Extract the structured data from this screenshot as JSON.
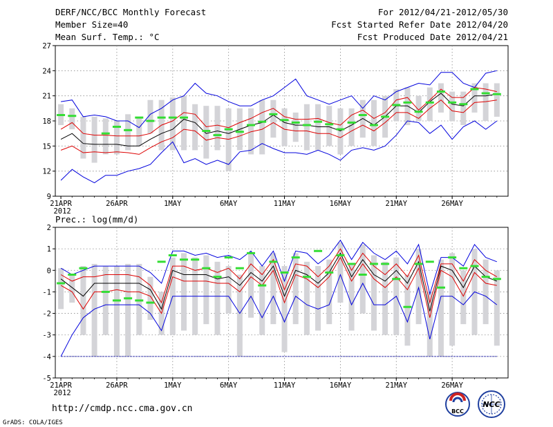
{
  "header": {
    "title": "DERF/NCC/BCC Monthly Forecast",
    "member_size": "Member Size=40",
    "variable_top": "Mean Surf. Temp.: °C",
    "period": "For 2012/04/21-2012/05/30",
    "started_refer": "Fcst Started Refer Date 2012/04/20",
    "produced": "Fcst Produced Date 2012/04/21"
  },
  "footer": {
    "url": "http://cmdp.ncc.cma.gov.cn",
    "credit": "GrADS: COLA/IGES",
    "logo_left": "BCC",
    "logo_right": "NCC"
  },
  "colors": {
    "mean": "#000000",
    "envelope": "#0000dd",
    "spread": "#dd0000",
    "box": "#d4d4d8",
    "obs": "#33dd33",
    "grid": "#888888",
    "baseline": "#3333aa"
  },
  "x_axis": {
    "labels": [
      "21APR",
      "26APR",
      "1MAY",
      "6MAY",
      "11MAY",
      "16MAY",
      "21MAY",
      "26MAY"
    ],
    "label_days": [
      1,
      6,
      11,
      16,
      21,
      26,
      31,
      36
    ],
    "year_label": "2012",
    "ndays": 40
  },
  "chart_data": [
    {
      "type": "line",
      "title": "Mean Surf. Temp.: °C",
      "ylim": [
        9,
        27
      ],
      "yticks": [
        9,
        12,
        15,
        18,
        21,
        24,
        27
      ],
      "x": [
        1,
        2,
        3,
        4,
        5,
        6,
        7,
        8,
        9,
        10,
        11,
        12,
        13,
        14,
        15,
        16,
        17,
        18,
        19,
        20,
        21,
        22,
        23,
        24,
        25,
        26,
        27,
        28,
        29,
        30,
        31,
        32,
        33,
        34,
        35,
        36,
        37,
        38,
        39,
        40
      ],
      "series": [
        {
          "name": "max",
          "values": [
            20.3,
            20.5,
            18.5,
            18.7,
            18.5,
            18.0,
            18.0,
            17.2,
            18.8,
            19.5,
            20.5,
            21.0,
            22.5,
            21.3,
            21.0,
            20.3,
            19.8,
            19.8,
            20.5,
            21.0,
            22.0,
            23.0,
            21.0,
            20.5,
            20.0,
            20.5,
            21.0,
            19.5,
            21.0,
            20.5,
            21.5,
            22.0,
            22.5,
            22.3,
            23.8,
            23.8,
            22.5,
            22.0,
            23.7,
            24.0
          ]
        },
        {
          "name": "upper",
          "values": [
            17.0,
            17.8,
            16.5,
            16.3,
            16.3,
            16.2,
            16.2,
            16.2,
            16.5,
            17.5,
            18.0,
            19.0,
            18.8,
            17.3,
            17.5,
            17.2,
            17.8,
            18.3,
            19.0,
            19.5,
            18.5,
            18.2,
            18.2,
            18.3,
            17.8,
            17.5,
            18.7,
            19.3,
            18.3,
            19.0,
            20.5,
            20.8,
            19.3,
            20.5,
            21.8,
            20.8,
            20.8,
            22.0,
            21.8,
            21.5
          ]
        },
        {
          "name": "mean",
          "values": [
            15.8,
            16.5,
            15.3,
            15.2,
            15.2,
            15.2,
            15.0,
            15.0,
            15.8,
            16.5,
            17.0,
            18.2,
            17.8,
            16.5,
            16.8,
            16.5,
            17.0,
            17.5,
            17.8,
            18.7,
            17.8,
            17.5,
            17.5,
            17.3,
            17.3,
            16.8,
            17.5,
            18.3,
            17.5,
            18.5,
            19.8,
            19.8,
            19.0,
            20.3,
            21.3,
            20.0,
            19.8,
            21.0,
            21.0,
            21.2
          ]
        },
        {
          "name": "lower",
          "values": [
            14.5,
            15.0,
            14.2,
            14.3,
            14.2,
            14.3,
            14.2,
            14.0,
            14.8,
            15.5,
            16.0,
            17.0,
            16.8,
            15.7,
            16.0,
            15.8,
            16.2,
            16.7,
            17.0,
            17.8,
            17.0,
            16.8,
            16.8,
            16.5,
            16.5,
            16.0,
            16.8,
            17.5,
            16.8,
            17.8,
            19.0,
            19.0,
            18.3,
            19.5,
            20.5,
            19.2,
            19.0,
            20.2,
            20.3,
            20.5
          ]
        },
        {
          "name": "min",
          "values": [
            10.9,
            12.2,
            11.3,
            10.6,
            11.5,
            11.5,
            12.0,
            12.3,
            12.8,
            14.2,
            15.5,
            13.0,
            13.5,
            12.8,
            13.3,
            12.8,
            14.3,
            14.5,
            15.3,
            14.7,
            14.2,
            14.2,
            14.0,
            14.5,
            14.0,
            13.3,
            14.5,
            14.8,
            14.5,
            15.0,
            16.3,
            18.0,
            17.8,
            16.5,
            17.5,
            15.8,
            17.3,
            18.0,
            17.0,
            18.0
          ]
        }
      ],
      "boxes": [
        [
          17.5,
          20.0
        ],
        [
          17.0,
          19.5
        ],
        [
          13.5,
          18.5
        ],
        [
          13.0,
          18.5
        ],
        [
          14.0,
          18.3
        ],
        [
          14.0,
          18.0
        ],
        [
          14.5,
          18.8
        ],
        [
          15.0,
          18.5
        ],
        [
          16.5,
          20.5
        ],
        [
          14.5,
          20.5
        ],
        [
          14.5,
          20.8
        ],
        [
          14.5,
          21.0
        ],
        [
          14.5,
          20.0
        ],
        [
          13.5,
          19.8
        ],
        [
          14.5,
          19.8
        ],
        [
          12.0,
          19.5
        ],
        [
          14.5,
          19.5
        ],
        [
          14.0,
          19.5
        ],
        [
          14.0,
          20.5
        ],
        [
          16.0,
          20.5
        ],
        [
          15.0,
          19.5
        ],
        [
          15.5,
          19.0
        ],
        [
          14.5,
          20.0
        ],
        [
          14.5,
          20.0
        ],
        [
          15.0,
          19.8
        ],
        [
          14.0,
          19.5
        ],
        [
          15.0,
          19.5
        ],
        [
          16.0,
          20.5
        ],
        [
          15.0,
          20.5
        ],
        [
          16.0,
          21.0
        ],
        [
          18.0,
          21.8
        ],
        [
          17.5,
          22.0
        ],
        [
          18.0,
          21.0
        ],
        [
          18.0,
          22.0
        ],
        [
          19.0,
          22.5
        ],
        [
          18.0,
          21.5
        ],
        [
          17.5,
          21.5
        ],
        [
          19.0,
          22.5
        ],
        [
          18.0,
          22.5
        ],
        [
          18.5,
          22.5
        ]
      ],
      "observed": [
        18.7,
        18.6,
        null,
        null,
        16.5,
        17.3,
        16.9,
        18.4,
        18.0,
        18.4,
        18.4,
        18.4,
        null,
        16.8,
        16.3,
        17.0,
        16.7,
        17.5,
        17.9,
        18.8,
        18.1,
        17.8,
        17.5,
        17.9,
        17.6,
        17.0,
        17.8,
        18.7,
        17.5,
        18.5,
        19.9,
        20.2,
        19.1,
        20.2,
        21.5,
        20.2,
        20.0,
        21.8,
        21.3,
        21.2
      ]
    },
    {
      "type": "line",
      "title": "Prec.: log(mm/d)",
      "ylim": [
        -5,
        2
      ],
      "yticks": [
        -5,
        -4,
        -3,
        -2,
        -1,
        0,
        1,
        2
      ],
      "x": [
        1,
        2,
        3,
        4,
        5,
        6,
        7,
        8,
        9,
        10,
        11,
        12,
        13,
        14,
        15,
        16,
        17,
        18,
        19,
        20,
        21,
        22,
        23,
        24,
        25,
        26,
        27,
        28,
        29,
        30,
        31,
        32,
        33,
        34,
        35,
        36,
        37,
        38,
        39,
        40
      ],
      "baseline": -4,
      "series": [
        {
          "name": "max",
          "values": [
            0.1,
            -0.2,
            0.0,
            0.2,
            0.2,
            0.2,
            0.2,
            0.2,
            -0.1,
            -0.6,
            0.9,
            0.9,
            0.7,
            0.8,
            0.6,
            0.7,
            0.5,
            0.9,
            0.2,
            0.9,
            -0.5,
            0.9,
            0.8,
            0.3,
            0.7,
            1.4,
            0.5,
            1.3,
            0.8,
            0.5,
            0.9,
            0.3,
            1.2,
            -1.1,
            0.6,
            0.6,
            0.2,
            1.2,
            0.6,
            0.4
          ]
        },
        {
          "name": "upper",
          "values": [
            -0.2,
            -0.5,
            -0.3,
            -0.3,
            -0.2,
            -0.2,
            -0.2,
            -0.3,
            -0.7,
            -1.5,
            0.2,
            0.2,
            0.0,
            0.1,
            -0.1,
            0.1,
            -0.4,
            0.3,
            -0.2,
            0.5,
            -0.9,
            0.3,
            0.2,
            -0.3,
            0.2,
            1.0,
            0.0,
            0.8,
            0.2,
            -0.2,
            0.3,
            -0.3,
            0.7,
            -1.5,
            0.3,
            0.3,
            -0.5,
            0.5,
            0.0,
            -0.3
          ]
        },
        {
          "name": "mean",
          "values": [
            -0.4,
            -0.8,
            -1.2,
            -0.6,
            -0.6,
            -0.6,
            -0.6,
            -0.6,
            -0.9,
            -1.8,
            0.0,
            -0.2,
            -0.2,
            -0.2,
            -0.4,
            -0.3,
            -0.7,
            -0.1,
            -0.5,
            0.2,
            -1.2,
            0.0,
            -0.2,
            -0.6,
            -0.1,
            0.8,
            -0.3,
            0.5,
            -0.2,
            -0.5,
            0.0,
            -0.6,
            0.4,
            -1.9,
            0.2,
            0.0,
            -0.8,
            0.2,
            -0.3,
            -0.5
          ]
        },
        {
          "name": "lower",
          "values": [
            -0.7,
            -1.0,
            -1.8,
            -1.0,
            -1.0,
            -0.9,
            -1.0,
            -1.0,
            -1.2,
            -2.0,
            -0.3,
            -0.5,
            -0.5,
            -0.5,
            -0.6,
            -0.6,
            -1.0,
            -0.3,
            -0.7,
            0.0,
            -1.5,
            -0.2,
            -0.4,
            -0.8,
            -0.3,
            0.6,
            -0.5,
            0.3,
            -0.4,
            -0.8,
            -0.3,
            -0.9,
            0.1,
            -2.2,
            0.0,
            -0.3,
            -1.2,
            -0.1,
            -0.6,
            -0.7
          ]
        },
        {
          "name": "min",
          "values": [
            -4.0,
            -3.0,
            -2.2,
            -1.8,
            -1.6,
            -1.6,
            -1.6,
            -1.6,
            -2.0,
            -2.8,
            -1.2,
            -1.2,
            -1.2,
            -1.2,
            -1.2,
            -1.2,
            -2.0,
            -1.2,
            -2.2,
            -1.2,
            -2.4,
            -1.2,
            -1.6,
            -1.8,
            -1.6,
            -0.2,
            -1.6,
            -0.6,
            -1.6,
            -1.6,
            -1.2,
            -2.4,
            -0.8,
            -3.2,
            -1.2,
            -1.2,
            -1.6,
            -1.0,
            -1.2,
            -1.6
          ]
        }
      ],
      "boxes": [
        [
          -1.8,
          0.1
        ],
        [
          -1.5,
          -0.2
        ],
        [
          -3.0,
          0.2
        ],
        [
          -4.0,
          0.3
        ],
        [
          -3.0,
          0.2
        ],
        [
          -4.0,
          0.2
        ],
        [
          -4.0,
          0.3
        ],
        [
          -3.0,
          0.3
        ],
        [
          -2.3,
          -0.3
        ],
        [
          -3.0,
          -1.0
        ],
        [
          -3.0,
          0.6
        ],
        [
          -2.8,
          0.8
        ],
        [
          -3.0,
          0.6
        ],
        [
          -2.5,
          0.7
        ],
        [
          -3.0,
          0.4
        ],
        [
          -2.0,
          0.2
        ],
        [
          -4.0,
          -0.2
        ],
        [
          -2.2,
          0.8
        ],
        [
          -3.0,
          0.2
        ],
        [
          -2.5,
          0.8
        ],
        [
          -3.8,
          0.2
        ],
        [
          -2.5,
          0.8
        ],
        [
          -3.0,
          0.4
        ],
        [
          -2.8,
          0.2
        ],
        [
          -2.5,
          0.5
        ],
        [
          -1.5,
          1.3
        ],
        [
          -2.8,
          0.3
        ],
        [
          -2.0,
          1.2
        ],
        [
          -2.8,
          0.7
        ],
        [
          -3.0,
          0.4
        ],
        [
          -3.0,
          0.6
        ],
        [
          -3.5,
          -0.2
        ],
        [
          -2.5,
          1.0
        ],
        [
          -4.0,
          -1.0
        ],
        [
          -4.0,
          0.5
        ],
        [
          -3.5,
          0.8
        ],
        [
          -2.5,
          0.0
        ],
        [
          -3.0,
          1.0
        ],
        [
          -2.5,
          0.5
        ],
        [
          -3.5,
          0.0
        ]
      ],
      "observed": [
        -0.6,
        -0.2,
        0.1,
        null,
        -1.0,
        -1.4,
        -1.3,
        -1.4,
        -1.5,
        0.4,
        0.7,
        0.5,
        0.5,
        0.1,
        -0.3,
        0.6,
        0.1,
        0.8,
        -0.7,
        0.4,
        -0.1,
        0.6,
        -0.3,
        0.9,
        -0.1,
        0.7,
        0.3,
        -0.2,
        0.3,
        0.3,
        -0.4,
        -1.7,
        0.3,
        0.4,
        -0.8,
        0.6,
        0.1,
        0.2,
        -0.3,
        -0.4
      ]
    }
  ]
}
